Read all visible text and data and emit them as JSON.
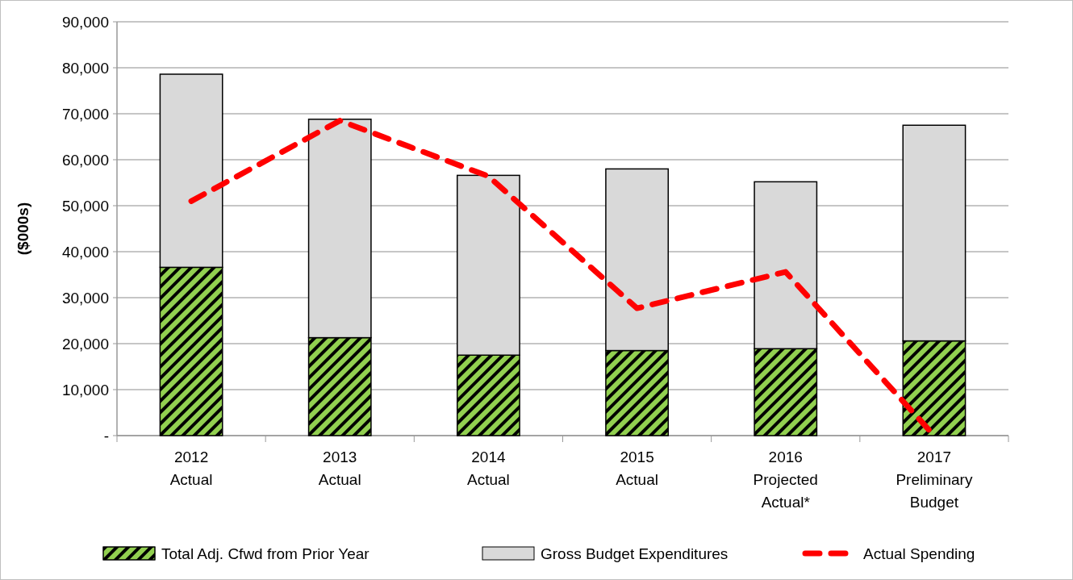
{
  "chart_data": {
    "type": "bar",
    "stacked": true,
    "ylabel": "($000s)",
    "categories": [
      "2012\nActual",
      "2013\nActual",
      "2014\nActual",
      "2015\nActual",
      "2016\nProjected\nActual*",
      "2017\nPreliminary\nBudget"
    ],
    "series": [
      {
        "name": "Total Adj. Cfwd from Prior Year",
        "color": "#92d050",
        "values": [
          36600,
          21300,
          17500,
          18500,
          18900,
          20600
        ]
      },
      {
        "name": "Gross Budget Expenditures",
        "color": "#d9d9d9",
        "values": [
          42000,
          47500,
          39100,
          39500,
          36300,
          46900
        ]
      },
      {
        "name": "Actual Spending",
        "type": "line",
        "color": "#ff0000",
        "line_style": "dashed",
        "values": [
          51000,
          68500,
          56400,
          27700,
          35600,
          0
        ]
      }
    ],
    "ylim": [
      0,
      90000
    ],
    "yticks": [
      {
        "value": 0,
        "label": "-"
      },
      {
        "value": 10000,
        "label": "10,000"
      },
      {
        "value": 20000,
        "label": "20,000"
      },
      {
        "value": 30000,
        "label": "30,000"
      },
      {
        "value": 40000,
        "label": "40,000"
      },
      {
        "value": 50000,
        "label": "50,000"
      },
      {
        "value": 60000,
        "label": "60,000"
      },
      {
        "value": 70000,
        "label": "70,000"
      },
      {
        "value": 80000,
        "label": "80,000"
      },
      {
        "value": 90000,
        "label": "90,000"
      }
    ],
    "grid": "y",
    "legend": "bottom"
  }
}
